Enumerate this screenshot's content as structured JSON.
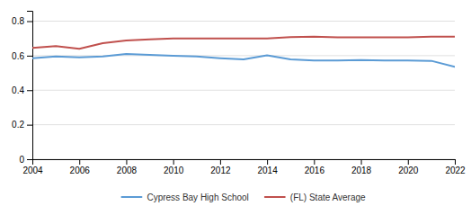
{
  "chart_data": {
    "type": "line",
    "x": [
      2004,
      2005,
      2006,
      2007,
      2008,
      2009,
      2010,
      2011,
      2012,
      2013,
      2014,
      2015,
      2016,
      2017,
      2018,
      2019,
      2020,
      2021,
      2022
    ],
    "series": [
      {
        "name": "Cypress Bay High School",
        "color": "#5b9bd5",
        "values": [
          0.585,
          0.595,
          0.59,
          0.595,
          0.61,
          0.605,
          0.6,
          0.595,
          0.585,
          0.578,
          0.602,
          0.578,
          0.572,
          0.572,
          0.575,
          0.572,
          0.572,
          0.57,
          0.535
        ]
      },
      {
        "name": "(FL) State Average",
        "color": "#c0504d",
        "values": [
          0.645,
          0.655,
          0.64,
          0.672,
          0.688,
          0.695,
          0.7,
          0.7,
          0.7,
          0.7,
          0.7,
          0.708,
          0.71,
          0.706,
          0.706,
          0.706,
          0.706,
          0.71,
          0.71
        ]
      }
    ],
    "xlim": [
      2004,
      2022
    ],
    "xticks": [
      2004,
      2006,
      2008,
      2010,
      2012,
      2014,
      2016,
      2018,
      2020,
      2022
    ],
    "ylim": [
      0,
      0.86
    ],
    "yticks": [
      0,
      0.2,
      0.4,
      0.6,
      0.8
    ],
    "grid": true,
    "legend": "bottom"
  }
}
